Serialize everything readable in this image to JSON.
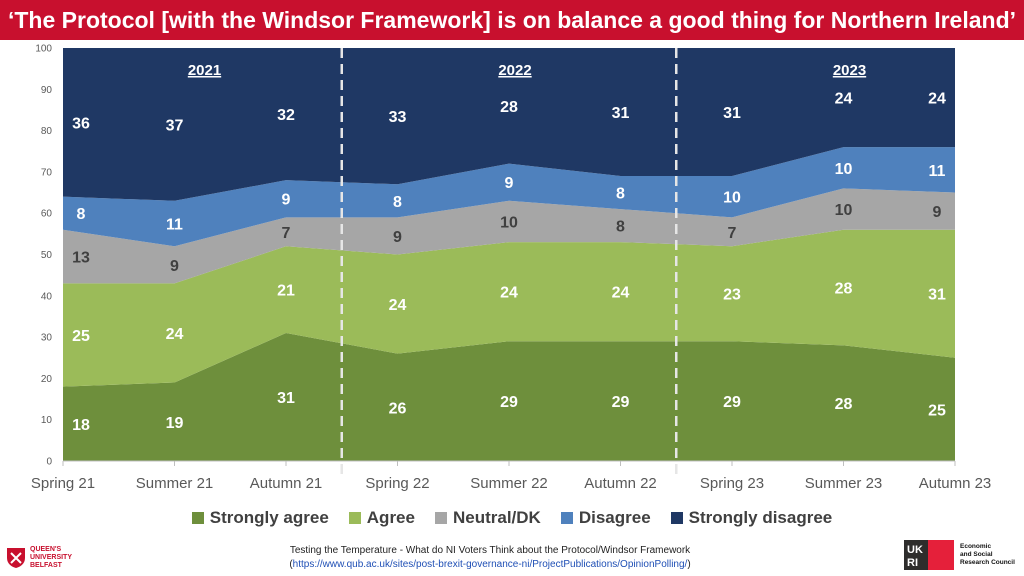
{
  "title": "‘The Protocol [with the Windsor Framework] is on balance a good thing for Northern Ireland’",
  "colors": {
    "title_bg": "#c8102e",
    "Strongly agree": "#6e8f3c",
    "Agree": "#9bbb59",
    "Neutral/DK": "#a6a6a6",
    "Disagree": "#4f81bd",
    "Strongly disagree": "#1f3864"
  },
  "chart_data": {
    "type": "area",
    "stacked": true,
    "categories": [
      "Spring 21",
      "Summer 21",
      "Autumn 21",
      "Spring 22",
      "Summer 22",
      "Autumn 22",
      "Spring 23",
      "Summer 23",
      "Autumn 23"
    ],
    "series": [
      {
        "name": "Strongly agree",
        "values": [
          18,
          19,
          31,
          26,
          29,
          29,
          29,
          28,
          25
        ]
      },
      {
        "name": "Agree",
        "values": [
          25,
          24,
          21,
          24,
          24,
          24,
          23,
          28,
          31
        ]
      },
      {
        "name": "Neutral/DK",
        "values": [
          13,
          9,
          7,
          9,
          10,
          8,
          7,
          10,
          9
        ]
      },
      {
        "name": "Disagree",
        "values": [
          8,
          11,
          9,
          8,
          9,
          8,
          10,
          10,
          11
        ]
      },
      {
        "name": "Strongly disagree",
        "values": [
          36,
          37,
          32,
          33,
          28,
          31,
          31,
          24,
          24
        ]
      }
    ],
    "ylim": [
      0,
      100
    ],
    "yticks": [
      0,
      10,
      20,
      30,
      40,
      50,
      60,
      70,
      80,
      90,
      100
    ],
    "year_groups": [
      {
        "label": "2021",
        "categories": [
          "Spring 21",
          "Summer 21",
          "Autumn 21"
        ]
      },
      {
        "label": "2022",
        "categories": [
          "Spring 22",
          "Summer 22",
          "Autumn 22"
        ]
      },
      {
        "label": "2023",
        "categories": [
          "Spring 23",
          "Summer 23",
          "Autumn 23"
        ]
      }
    ],
    "legend_position": "bottom",
    "grid": false
  },
  "legend": [
    "Strongly agree",
    "Agree",
    "Neutral/DK",
    "Disagree",
    "Strongly disagree"
  ],
  "footer": {
    "source_line": "Testing the Temperature - What do NI Voters Think about the Protocol/Windsor Framework",
    "url": "https://www.qub.ac.uk/sites/post-brexit-governance-ni/ProjectPublications/OpinionPolling/",
    "paren_open": "(",
    "paren_close": ")"
  },
  "logos": {
    "qub": [
      "QUEEN'S",
      "UNIVERSITY",
      "BELFAST"
    ],
    "ukri": [
      "Economic",
      "and Social",
      "Research Council"
    ]
  }
}
